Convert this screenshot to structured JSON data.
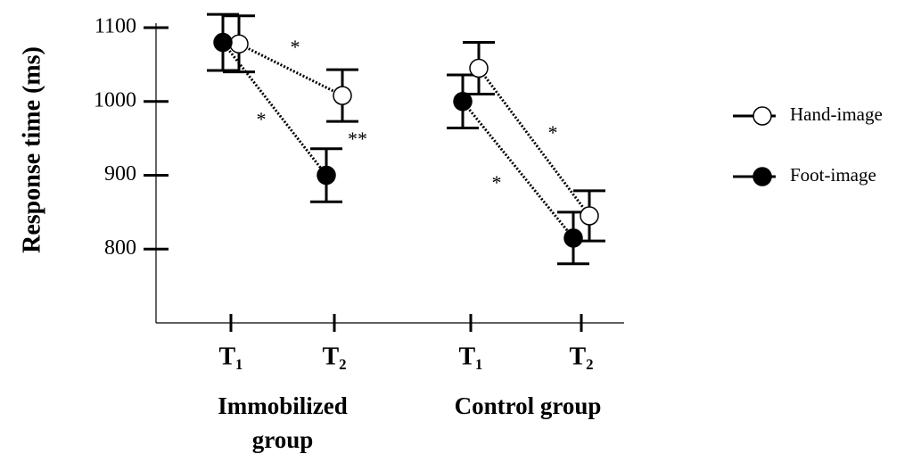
{
  "chart_data": {
    "type": "line",
    "ylabel": "Response time (ms)",
    "categories": [
      "T₁",
      "T₂",
      "T₁",
      "T₂"
    ],
    "groups": [
      "Immobilized group",
      "Control group"
    ],
    "series": [
      {
        "name": "Hand-image",
        "color": "#ffffff",
        "values": [
          1078,
          1008,
          1045,
          845
        ],
        "errors": [
          38,
          35,
          35,
          34
        ]
      },
      {
        "name": "Foot-image",
        "color": "#000000",
        "values": [
          1080,
          900,
          1000,
          815
        ],
        "errors": [
          38,
          36,
          36,
          35
        ]
      }
    ],
    "annotations": [
      "*",
      "*",
      "**",
      "*",
      "*"
    ],
    "ylim": [
      700,
      1100
    ],
    "yticks": [
      800,
      900,
      1000,
      1100
    ],
    "legend": "right"
  }
}
